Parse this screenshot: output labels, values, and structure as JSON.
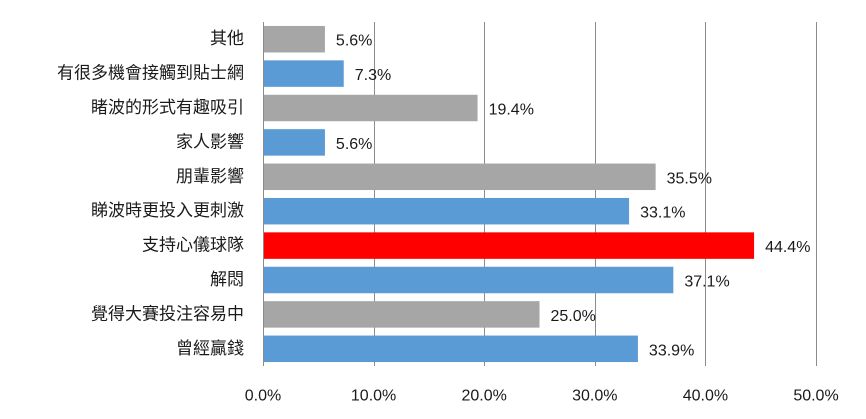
{
  "chart_data": {
    "type": "bar",
    "orientation": "horizontal",
    "categories": [
      "其他",
      "有很多機會接觸到貼士網",
      "睹波的形式有趣吸引",
      "家人影響",
      "朋輩影響",
      "睇波時更投入更刺激",
      "支持心儀球隊",
      "解悶",
      "覺得大賽投注容易中",
      "曾經贏錢"
    ],
    "values": [
      5.6,
      7.3,
      19.4,
      5.6,
      35.5,
      33.1,
      44.4,
      37.1,
      25.0,
      33.9
    ],
    "value_labels": [
      "5.6%",
      "7.3%",
      "19.4%",
      "5.6%",
      "35.5%",
      "33.1%",
      "44.4%",
      "37.1%",
      "25.0%",
      "33.9%"
    ],
    "bar_colors": [
      "#a6a6a6",
      "#5b9bd5",
      "#a6a6a6",
      "#5b9bd5",
      "#a6a6a6",
      "#5b9bd5",
      "#ff0000",
      "#5b9bd5",
      "#a6a6a6",
      "#5b9bd5"
    ],
    "xlim": [
      0,
      50
    ],
    "xticks": [
      0,
      10,
      20,
      30,
      40,
      50
    ],
    "xtick_labels": [
      "0.0%",
      "10.0%",
      "20.0%",
      "30.0%",
      "40.0%",
      "50.0%"
    ],
    "grid": "vertical",
    "legend": "none",
    "title": "",
    "xlabel": "",
    "ylabel": ""
  }
}
